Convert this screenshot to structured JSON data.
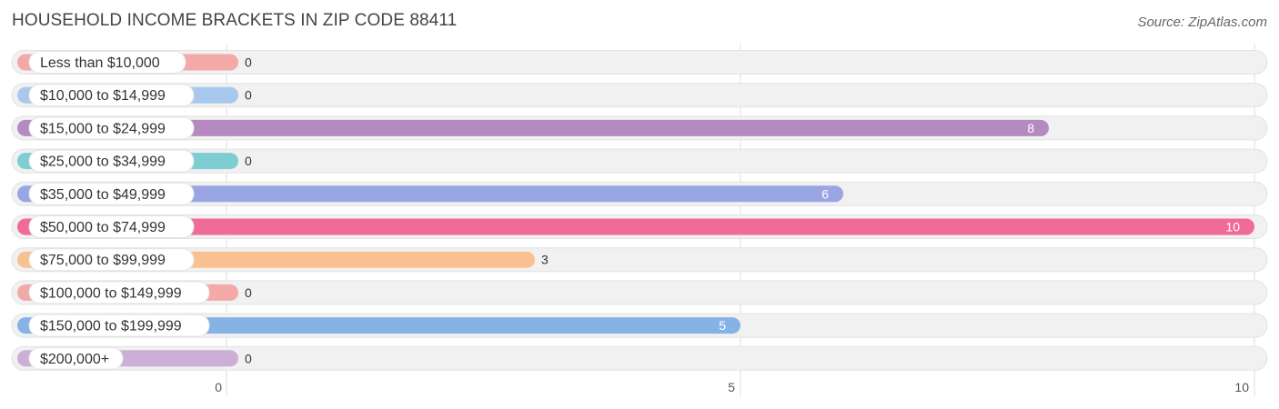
{
  "header": {
    "title": "HOUSEHOLD INCOME BRACKETS IN ZIP CODE 88411",
    "source": "Source: ZipAtlas.com"
  },
  "chart_data": {
    "type": "bar",
    "orientation": "horizontal",
    "title": "HOUSEHOLD INCOME BRACKETS IN ZIP CODE 88411",
    "xlabel": "",
    "ylabel": "",
    "xlim": [
      0,
      10
    ],
    "x_ticks": [
      0,
      5,
      10
    ],
    "grid": true,
    "categories": [
      "Less than $10,000",
      "$10,000 to $14,999",
      "$15,000 to $24,999",
      "$25,000 to $34,999",
      "$35,000 to $49,999",
      "$50,000 to $74,999",
      "$75,000 to $99,999",
      "$100,000 to $149,999",
      "$150,000 to $199,999",
      "$200,000+"
    ],
    "values": [
      0,
      0,
      8,
      0,
      6,
      10,
      3,
      0,
      5,
      0
    ],
    "colors": [
      "#f2a9a8",
      "#a9c8ed",
      "#b48ac0",
      "#7dcdd2",
      "#9aa6e3",
      "#f06b96",
      "#f9c18f",
      "#f2a9a8",
      "#86b2e6",
      "#cdaed6"
    ]
  }
}
